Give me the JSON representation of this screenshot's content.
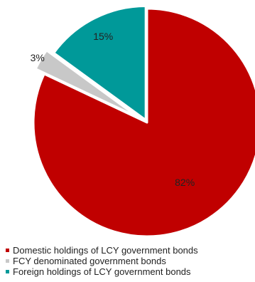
{
  "chart_data": {
    "type": "pie",
    "title": "",
    "start_angle_deg": 0,
    "direction": "clockwise",
    "legend_position": "bottom-left",
    "slices": [
      {
        "name": "Domestic holdings of LCY government bonds",
        "value": 82,
        "label": "82%",
        "color": "#c00000",
        "exploded": false
      },
      {
        "name": "FCY denominated government bonds",
        "value": 3,
        "label": "3%",
        "color": "#c8c8c8",
        "exploded": true
      },
      {
        "name": "Foreign holdings of LCY government bonds",
        "value": 15,
        "label": "15%",
        "color": "#009999",
        "exploded": true
      }
    ]
  }
}
